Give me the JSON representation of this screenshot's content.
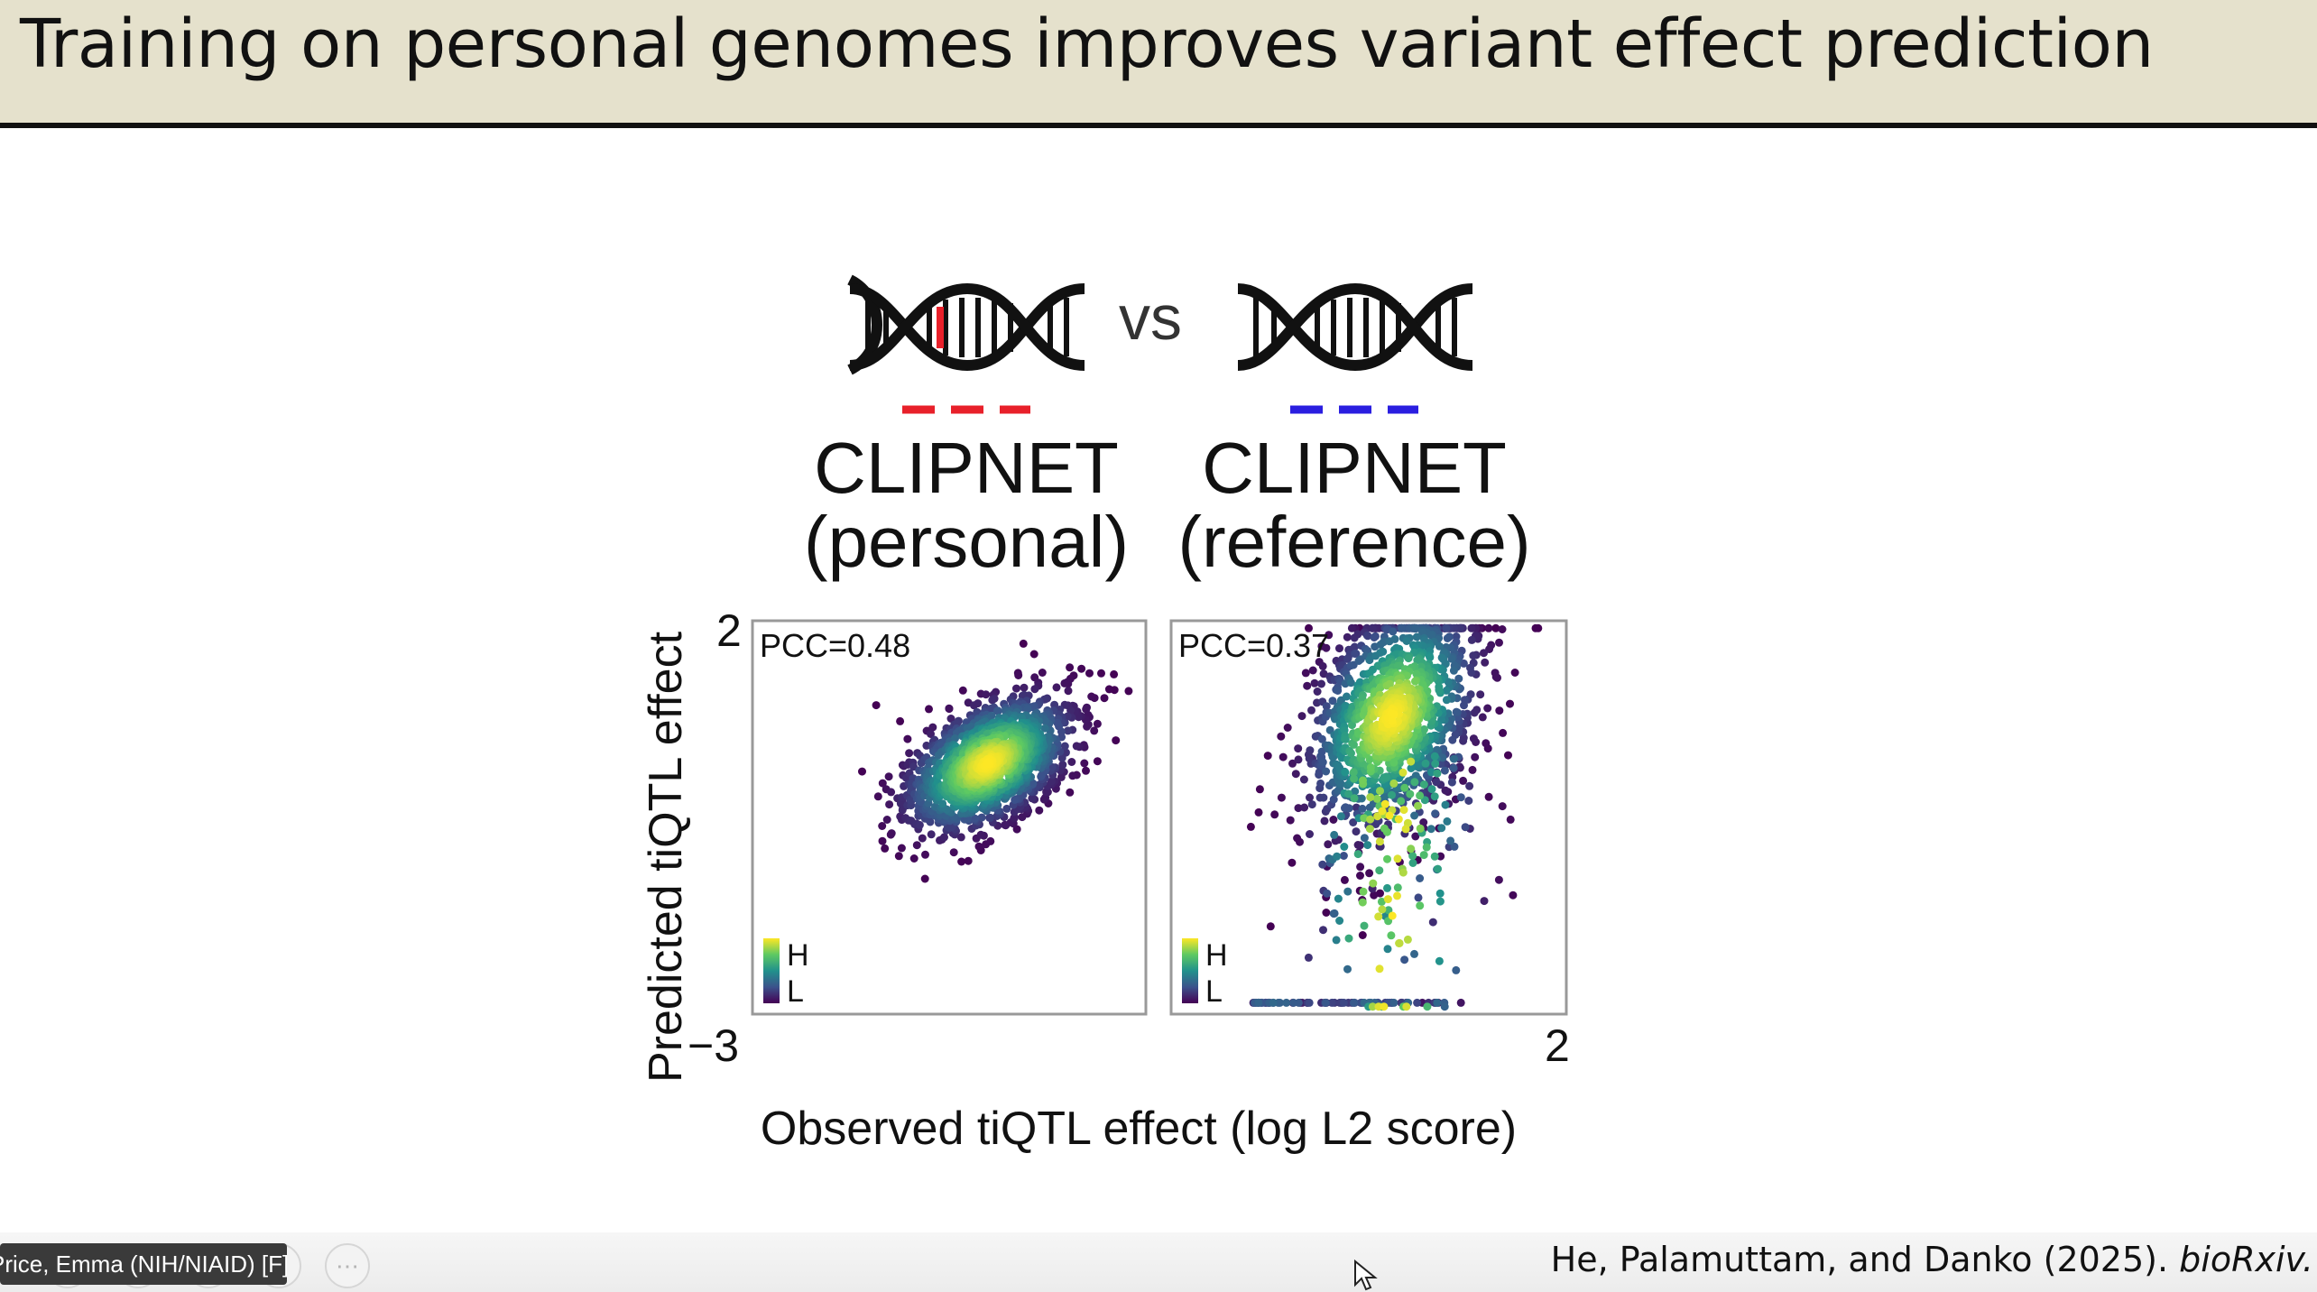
{
  "slide": {
    "title": "Training on personal genomes improves variant effect prediction",
    "vs": "vs",
    "models": [
      {
        "name": "CLIPNET",
        "variant": "(personal)",
        "line_color": "#e8202a",
        "mutation_color": "#e8202a"
      },
      {
        "name": "CLIPNET",
        "variant": "(reference)",
        "line_color": "#2a1ee0"
      }
    ],
    "citation_authors": "He, Palamuttam, and Danko (2025). ",
    "citation_journal": "bioRxiv."
  },
  "chart_data": [
    {
      "type": "scatter",
      "xlabel": "Observed tiQTL effect (log L2 score)",
      "ylabel": "Predicted tiQTL effect",
      "xlim": [
        -3,
        2
      ],
      "ylim": [
        -3,
        2
      ],
      "annotation": "PCC=0.48",
      "colorbar": {
        "high": "H",
        "low": "L",
        "colormap": "viridis"
      },
      "density_center": {
        "x": 0.0,
        "y": 0.2
      },
      "correlation": 0.48
    },
    {
      "type": "scatter",
      "xlabel": "Observed tiQTL effect (log L2 score)",
      "ylabel": "Predicted tiQTL effect",
      "xlim": [
        -3,
        2
      ],
      "ylim": [
        -3,
        2
      ],
      "annotation": "PCC=0.37",
      "colorbar": {
        "high": "H",
        "low": "L",
        "colormap": "viridis"
      },
      "density_center": {
        "x": -0.2,
        "y": 0.8
      },
      "correlation": 0.37,
      "floor_value": -2.9
    }
  ],
  "axis_ticks": {
    "y_max": "2",
    "y_min": "−3",
    "x_max": "2"
  },
  "meeting": {
    "participant_name": "Price, Emma (NIH/NIAID) [F]",
    "more_icon": "more-options-icon"
  },
  "colors": {
    "title_bar": "#e5e1cc",
    "personal": "#e8202a",
    "reference": "#2a1ee0"
  }
}
